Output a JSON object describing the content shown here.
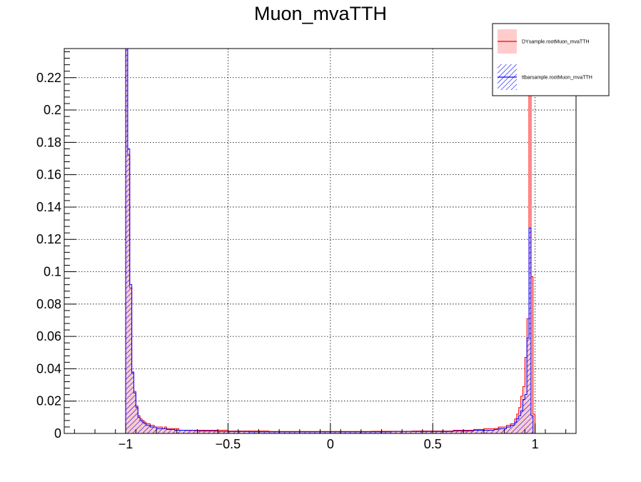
{
  "chart_data": {
    "type": "histogram",
    "title": "Muon_mvaTTH",
    "xlabel": "",
    "ylabel": "",
    "xlim": [
      -1.3,
      1.2
    ],
    "ylim": [
      0,
      0.238
    ],
    "x_ticks": [
      {
        "value": -1,
        "label": "−1"
      },
      {
        "value": -0.5,
        "label": "−0.5"
      },
      {
        "value": 0,
        "label": "0"
      },
      {
        "value": 0.5,
        "label": "0.5"
      },
      {
        "value": 1,
        "label": "1"
      }
    ],
    "y_ticks": [
      {
        "value": 0,
        "label": "0"
      },
      {
        "value": 0.02,
        "label": "0.02"
      },
      {
        "value": 0.04,
        "label": "0.04"
      },
      {
        "value": 0.06,
        "label": "0.06"
      },
      {
        "value": 0.08,
        "label": "0.08"
      },
      {
        "value": 0.1,
        "label": "0.1"
      },
      {
        "value": 0.12,
        "label": "0.12"
      },
      {
        "value": 0.14,
        "label": "0.14"
      },
      {
        "value": 0.16,
        "label": "0.16"
      },
      {
        "value": 0.18,
        "label": "0.18"
      },
      {
        "value": 0.2,
        "label": "0.2"
      },
      {
        "value": 0.22,
        "label": "0.22"
      }
    ],
    "grid": true,
    "legend_position": "top-right",
    "bin_width": 0.01,
    "series": [
      {
        "name": "DYsample.rootMuon_mvaTTH",
        "color": "#ff0000",
        "fill": "#ffcccc",
        "style": "solid-fill",
        "bins": [
          {
            "x": -1.0,
            "y": 0.238
          },
          {
            "x": -0.99,
            "y": 0.172
          },
          {
            "x": -0.98,
            "y": 0.09
          },
          {
            "x": -0.97,
            "y": 0.037
          },
          {
            "x": -0.96,
            "y": 0.026
          },
          {
            "x": -0.95,
            "y": 0.017
          },
          {
            "x": -0.94,
            "y": 0.011
          },
          {
            "x": -0.93,
            "y": 0.009
          },
          {
            "x": -0.92,
            "y": 0.008
          },
          {
            "x": -0.91,
            "y": 0.007
          },
          {
            "x": -0.9,
            "y": 0.006
          },
          {
            "x": -0.89,
            "y": 0.006
          },
          {
            "x": -0.88,
            "y": 0.005
          },
          {
            "x": -0.87,
            "y": 0.005
          },
          {
            "x": -0.86,
            "y": 0.004
          },
          {
            "x": -0.85,
            "y": 0.004
          },
          {
            "x": -0.84,
            "y": 0.004
          },
          {
            "x": -0.83,
            "y": 0.004
          },
          {
            "x": -0.82,
            "y": 0.003
          },
          {
            "x": -0.81,
            "y": 0.004
          },
          {
            "x": -0.8,
            "y": 0.003
          },
          {
            "x": -0.78,
            "y": 0.003
          },
          {
            "x": -0.76,
            "y": 0.003
          },
          {
            "x": -0.74,
            "y": 0.002
          },
          {
            "x": -0.72,
            "y": 0.002
          },
          {
            "x": -0.7,
            "y": 0.002
          },
          {
            "x": -0.65,
            "y": 0.002
          },
          {
            "x": -0.6,
            "y": 0.002
          },
          {
            "x": -0.55,
            "y": 0.002
          },
          {
            "x": -0.5,
            "y": 0.0015
          },
          {
            "x": -0.45,
            "y": 0.0015
          },
          {
            "x": -0.4,
            "y": 0.0015
          },
          {
            "x": -0.35,
            "y": 0.0015
          },
          {
            "x": -0.3,
            "y": 0.0012
          },
          {
            "x": -0.2,
            "y": 0.0012
          },
          {
            "x": -0.1,
            "y": 0.0012
          },
          {
            "x": 0.0,
            "y": 0.0012
          },
          {
            "x": 0.1,
            "y": 0.0012
          },
          {
            "x": 0.2,
            "y": 0.0013
          },
          {
            "x": 0.3,
            "y": 0.0013
          },
          {
            "x": 0.4,
            "y": 0.0015
          },
          {
            "x": 0.5,
            "y": 0.0015
          },
          {
            "x": 0.6,
            "y": 0.002
          },
          {
            "x": 0.65,
            "y": 0.002
          },
          {
            "x": 0.7,
            "y": 0.0025
          },
          {
            "x": 0.75,
            "y": 0.003
          },
          {
            "x": 0.8,
            "y": 0.003
          },
          {
            "x": 0.82,
            "y": 0.004
          },
          {
            "x": 0.84,
            "y": 0.004
          },
          {
            "x": 0.86,
            "y": 0.005
          },
          {
            "x": 0.88,
            "y": 0.006
          },
          {
            "x": 0.9,
            "y": 0.009
          },
          {
            "x": 0.91,
            "y": 0.012
          },
          {
            "x": 0.92,
            "y": 0.016
          },
          {
            "x": 0.93,
            "y": 0.023
          },
          {
            "x": 0.94,
            "y": 0.029
          },
          {
            "x": 0.95,
            "y": 0.047
          },
          {
            "x": 0.96,
            "y": 0.071
          },
          {
            "x": 0.97,
            "y": 0.238
          },
          {
            "x": 0.98,
            "y": 0.097
          },
          {
            "x": 0.99,
            "y": 0.012
          }
        ]
      },
      {
        "name": "ttbarsample.rootMuon_mvaTTH",
        "color": "#0000ff",
        "fill": "#0000ff",
        "style": "hatched",
        "bins": [
          {
            "x": -1.0,
            "y": 0.238
          },
          {
            "x": -0.99,
            "y": 0.176
          },
          {
            "x": -0.98,
            "y": 0.092
          },
          {
            "x": -0.97,
            "y": 0.038
          },
          {
            "x": -0.96,
            "y": 0.025
          },
          {
            "x": -0.95,
            "y": 0.016
          },
          {
            "x": -0.94,
            "y": 0.01
          },
          {
            "x": -0.93,
            "y": 0.008
          },
          {
            "x": -0.92,
            "y": 0.007
          },
          {
            "x": -0.91,
            "y": 0.006
          },
          {
            "x": -0.9,
            "y": 0.005
          },
          {
            "x": -0.89,
            "y": 0.005
          },
          {
            "x": -0.88,
            "y": 0.004
          },
          {
            "x": -0.87,
            "y": 0.004
          },
          {
            "x": -0.86,
            "y": 0.004
          },
          {
            "x": -0.85,
            "y": 0.003
          },
          {
            "x": -0.84,
            "y": 0.003
          },
          {
            "x": -0.83,
            "y": 0.003
          },
          {
            "x": -0.82,
            "y": 0.003
          },
          {
            "x": -0.81,
            "y": 0.003
          },
          {
            "x": -0.8,
            "y": 0.0025
          },
          {
            "x": -0.78,
            "y": 0.0025
          },
          {
            "x": -0.76,
            "y": 0.002
          },
          {
            "x": -0.74,
            "y": 0.002
          },
          {
            "x": -0.72,
            "y": 0.002
          },
          {
            "x": -0.7,
            "y": 0.0018
          },
          {
            "x": -0.65,
            "y": 0.0015
          },
          {
            "x": -0.6,
            "y": 0.0015
          },
          {
            "x": -0.55,
            "y": 0.0012
          },
          {
            "x": -0.5,
            "y": 0.0012
          },
          {
            "x": -0.45,
            "y": 0.0012
          },
          {
            "x": -0.4,
            "y": 0.001
          },
          {
            "x": -0.35,
            "y": 0.001
          },
          {
            "x": -0.3,
            "y": 0.001
          },
          {
            "x": -0.2,
            "y": 0.001
          },
          {
            "x": -0.1,
            "y": 0.001
          },
          {
            "x": 0.0,
            "y": 0.001
          },
          {
            "x": 0.1,
            "y": 0.001
          },
          {
            "x": 0.2,
            "y": 0.001
          },
          {
            "x": 0.3,
            "y": 0.0012
          },
          {
            "x": 0.4,
            "y": 0.0012
          },
          {
            "x": 0.5,
            "y": 0.0012
          },
          {
            "x": 0.6,
            "y": 0.0015
          },
          {
            "x": 0.65,
            "y": 0.0015
          },
          {
            "x": 0.7,
            "y": 0.002
          },
          {
            "x": 0.75,
            "y": 0.002
          },
          {
            "x": 0.8,
            "y": 0.0025
          },
          {
            "x": 0.82,
            "y": 0.003
          },
          {
            "x": 0.84,
            "y": 0.003
          },
          {
            "x": 0.86,
            "y": 0.004
          },
          {
            "x": 0.88,
            "y": 0.005
          },
          {
            "x": 0.9,
            "y": 0.007
          },
          {
            "x": 0.91,
            "y": 0.009
          },
          {
            "x": 0.92,
            "y": 0.011
          },
          {
            "x": 0.93,
            "y": 0.014
          },
          {
            "x": 0.94,
            "y": 0.021
          },
          {
            "x": 0.95,
            "y": 0.024
          },
          {
            "x": 0.96,
            "y": 0.059
          },
          {
            "x": 0.97,
            "y": 0.127
          },
          {
            "x": 0.98,
            "y": 0.011
          }
        ]
      }
    ]
  }
}
